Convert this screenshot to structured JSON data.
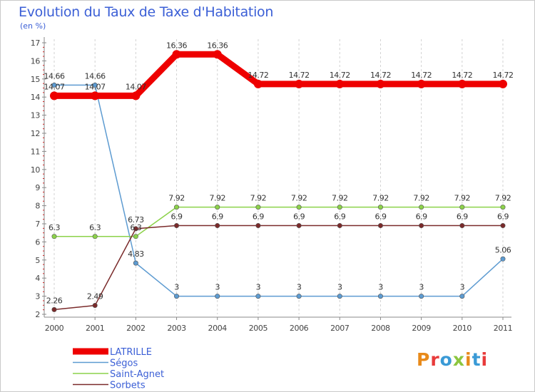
{
  "chart_data": {
    "type": "line",
    "title": "Evolution du Taux de Taxe d'Habitation",
    "subtitle": "(en %)",
    "xlabel": "",
    "ylabel": "",
    "x": [
      "2000",
      "2001",
      "2002",
      "2003",
      "2004",
      "2005",
      "2006",
      "2007",
      "2008",
      "2009",
      "2010",
      "2011"
    ],
    "ylim": [
      2,
      17
    ],
    "yticks": [
      2,
      3,
      4,
      5,
      6,
      7,
      8,
      9,
      10,
      11,
      12,
      13,
      14,
      15,
      16,
      17
    ],
    "grid": "vertical-dashed",
    "series": [
      {
        "name": "LATRILLE",
        "color": "#ee0000",
        "values": [
          14.07,
          14.07,
          14.07,
          16.36,
          16.36,
          14.72,
          14.72,
          14.72,
          14.72,
          14.72,
          14.72,
          14.72
        ],
        "labels": [
          "14.07",
          "14.07",
          "14.07",
          "16.36",
          "16.36",
          "14.72",
          "14.72",
          "14.72",
          "14.72",
          "14.72",
          "14.72",
          "14.72"
        ]
      },
      {
        "name": "Ségos",
        "color": "#5d9bd1",
        "values": [
          14.66,
          14.66,
          4.83,
          3,
          3,
          3,
          3,
          3,
          3,
          3,
          3,
          5.06
        ],
        "labels": [
          "14.66",
          "14.66",
          "4.83",
          "3",
          "3",
          "3",
          "3",
          "3",
          "3",
          "3",
          "3",
          "5.06"
        ]
      },
      {
        "name": "Saint-Agnet",
        "color": "#8cd24a",
        "values": [
          6.3,
          6.3,
          6.3,
          7.92,
          7.92,
          7.92,
          7.92,
          7.92,
          7.92,
          7.92,
          7.92,
          7.92
        ],
        "labels": [
          "6.3",
          "6.3",
          "6.3",
          "7.92",
          "7.92",
          "7.92",
          "7.92",
          "7.92",
          "7.92",
          "7.92",
          "7.92",
          "7.92"
        ]
      },
      {
        "name": "Sorbets",
        "color": "#7a2a2a",
        "values": [
          2.26,
          2.49,
          6.73,
          6.9,
          6.9,
          6.9,
          6.9,
          6.9,
          6.9,
          6.9,
          6.9,
          6.9
        ],
        "labels": [
          "2.26",
          "2.49",
          "6.73",
          "6.9",
          "6.9",
          "6.9",
          "6.9",
          "6.9",
          "6.9",
          "6.9",
          "6.9",
          "6.9"
        ]
      }
    ],
    "legend_position": "bottom-left"
  },
  "brand": {
    "text": "Proxiti"
  }
}
